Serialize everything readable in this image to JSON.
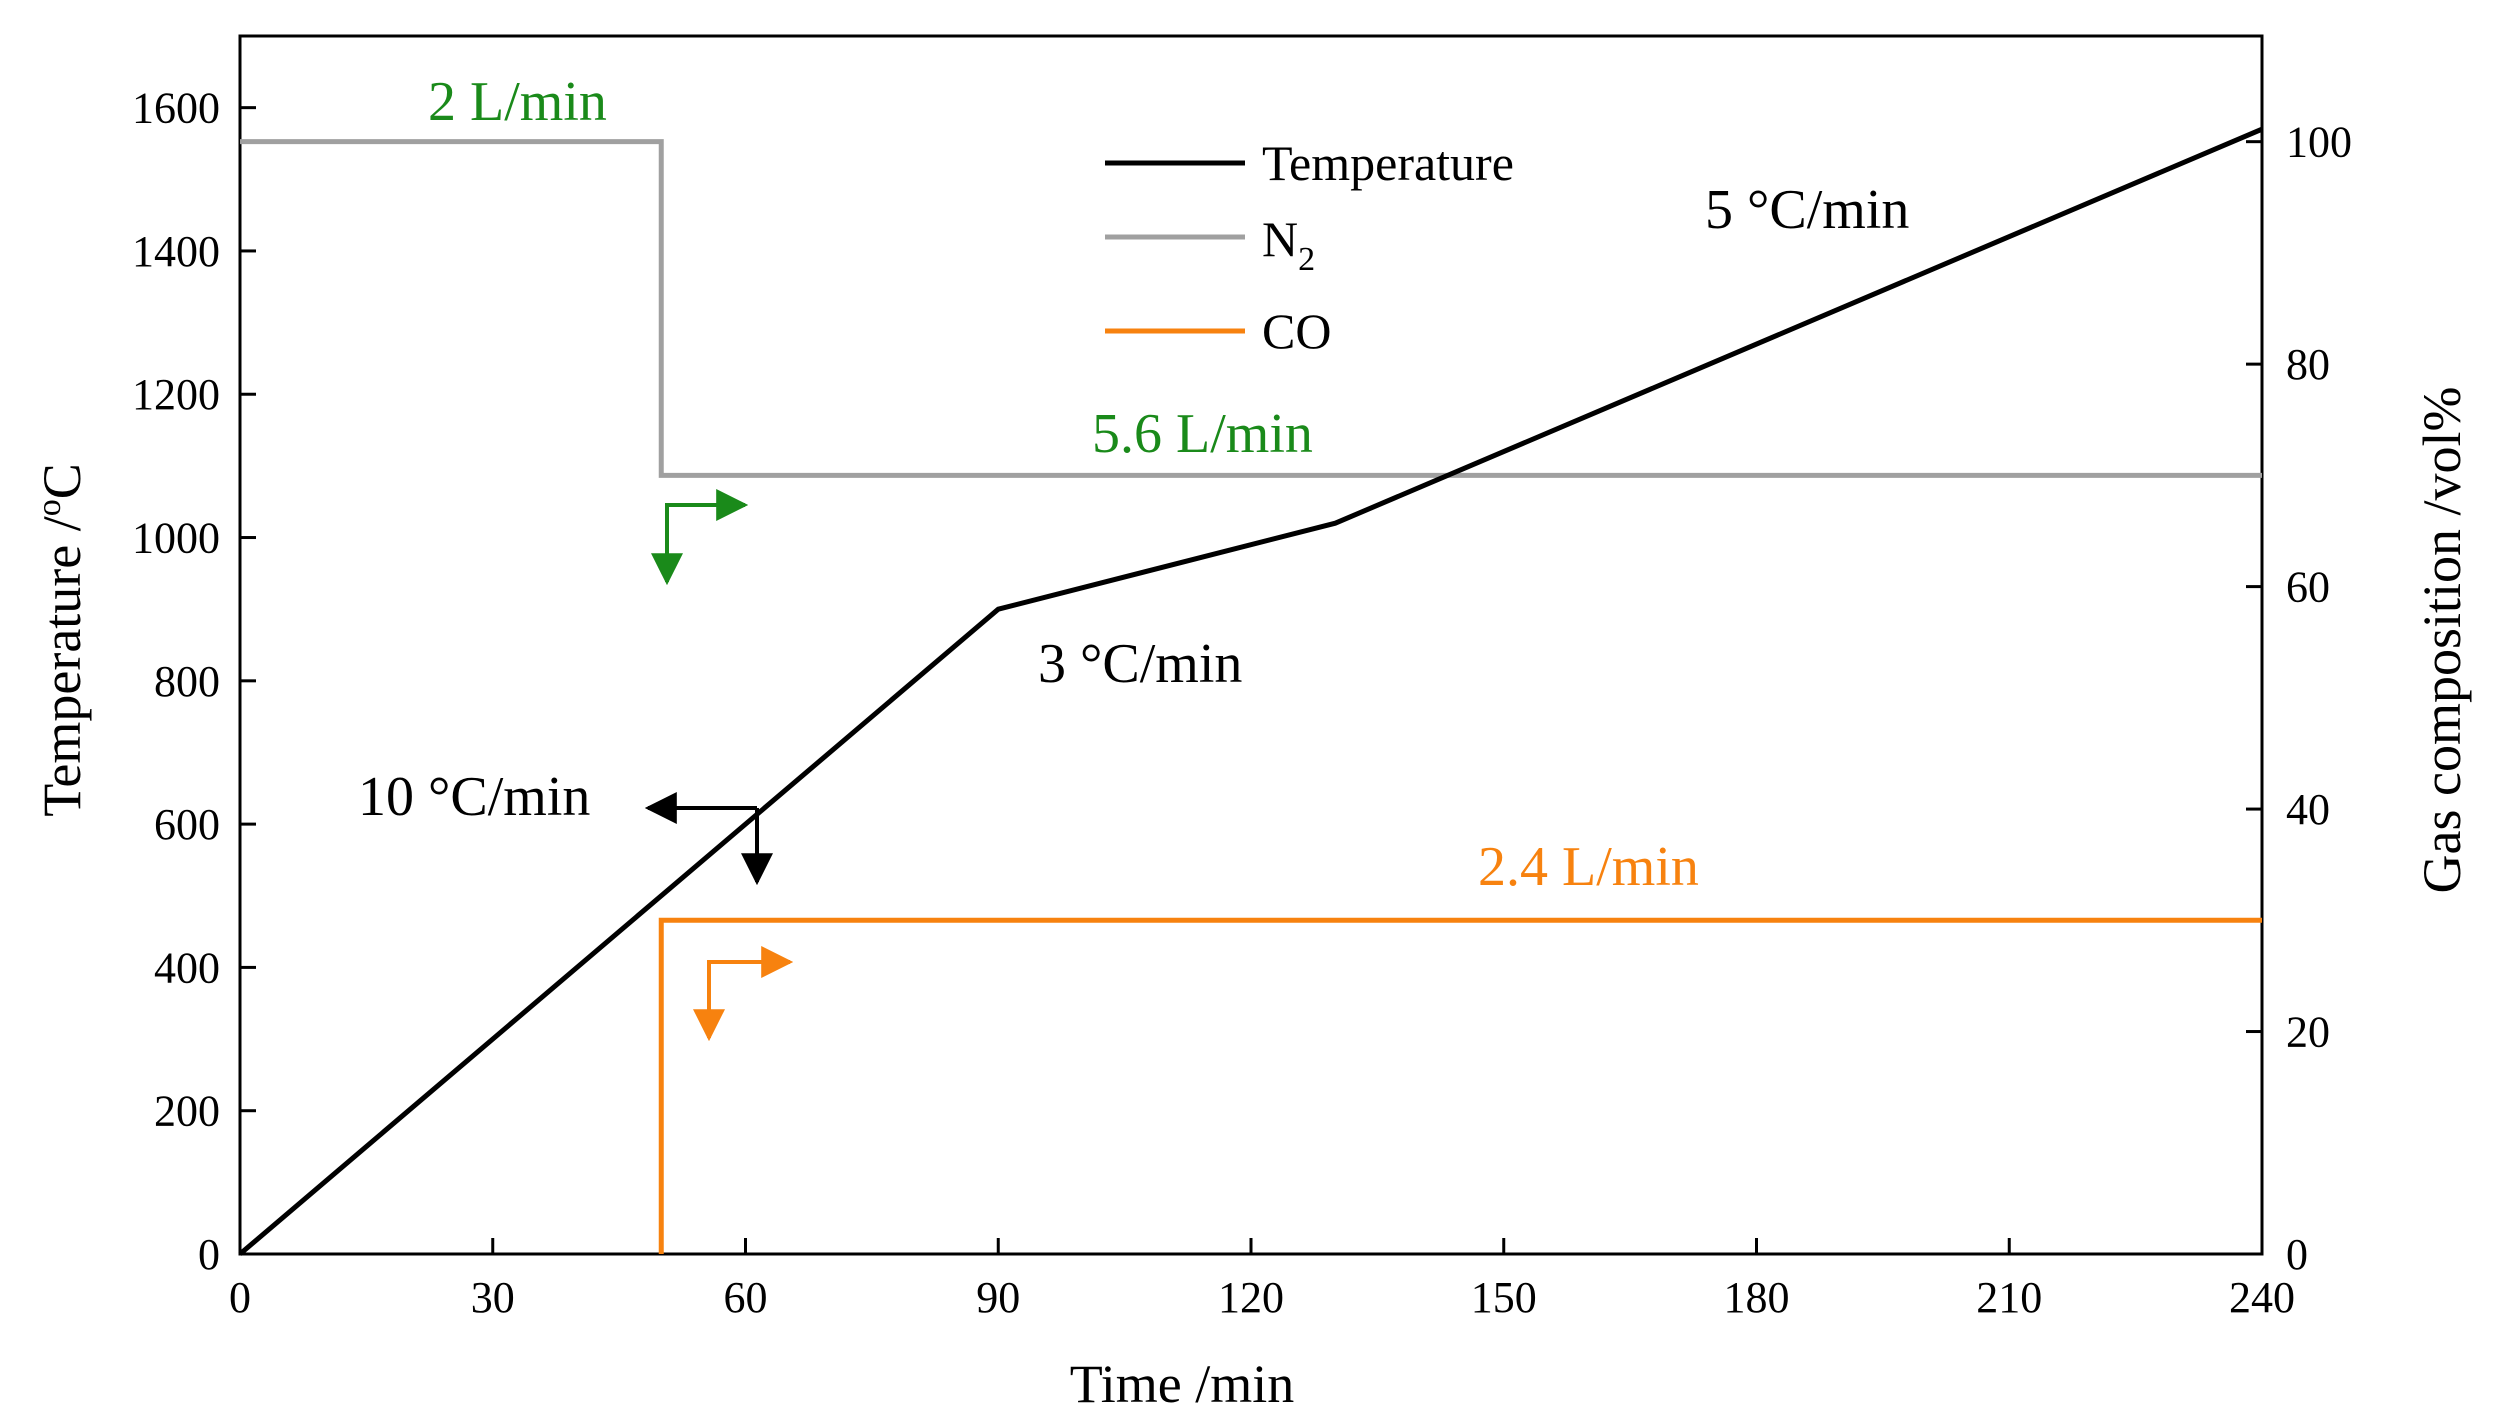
{
  "chart_data": {
    "type": "line",
    "title": "",
    "xlabel": "Time /min",
    "ylabel_left": "Temperature /°C",
    "ylabel_left_unit_sup": "o",
    "ylabel_left_prefix": "Temperature /",
    "ylabel_left_suffix": "C",
    "ylabel_right": "Gas composition /vol%",
    "xlim": [
      0,
      240
    ],
    "ylim_left": [
      0,
      1700
    ],
    "ylim_right": [
      0,
      109.5
    ],
    "xticks": [
      0,
      30,
      60,
      90,
      120,
      150,
      180,
      210,
      240
    ],
    "yticks_left": [
      0,
      200,
      400,
      600,
      800,
      1000,
      1200,
      1400,
      1600
    ],
    "yticks_right": [
      0,
      20,
      40,
      60,
      80,
      100
    ],
    "grid": false,
    "series": [
      {
        "name": "Temperature",
        "axis": "left",
        "color": "#000000",
        "points": [
          [
            0,
            0
          ],
          [
            90,
            900
          ],
          [
            130,
            1020
          ],
          [
            240,
            1570
          ]
        ]
      },
      {
        "name": "N2",
        "axis": "right",
        "color": "#a0a0a0",
        "points": [
          [
            0,
            100
          ],
          [
            50,
            100
          ],
          [
            50,
            70
          ],
          [
            240,
            70
          ]
        ]
      },
      {
        "name": "CO",
        "axis": "right",
        "color": "#f7820f",
        "points": [
          [
            50,
            0
          ],
          [
            50,
            30
          ],
          [
            240,
            30
          ]
        ]
      }
    ],
    "legend": {
      "position": "top-center",
      "entries": [
        {
          "label": "Temperature",
          "color": "#000000"
        },
        {
          "label_main": "N",
          "label_sub": "2",
          "color": "#a0a0a0"
        },
        {
          "label": "CO",
          "color": "#f7820f"
        }
      ]
    },
    "annotations": [
      {
        "id": "n2-flow-1",
        "text": "2 L/min",
        "color": "#1a8a1a"
      },
      {
        "id": "n2-flow-2",
        "text": "5.6 L/min",
        "color": "#1a8a1a"
      },
      {
        "id": "co-flow",
        "text": "2.4 L/min",
        "color": "#f7820f"
      },
      {
        "id": "rate-10",
        "text": "10 °C/min",
        "color": "#000000"
      },
      {
        "id": "rate-3",
        "text": "3 °C/min",
        "color": "#000000"
      },
      {
        "id": "rate-5",
        "text": "5 °C/min",
        "color": "#000000"
      }
    ]
  }
}
